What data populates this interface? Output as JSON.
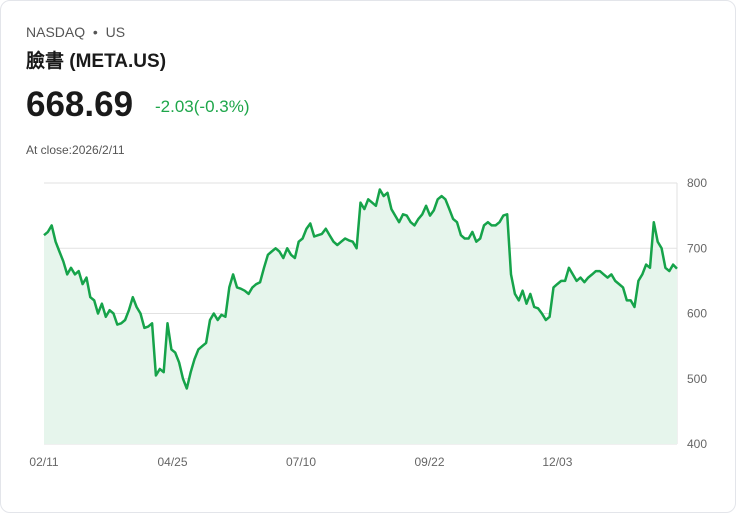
{
  "header": {
    "exchange": "NASDAQ",
    "separator": "•",
    "market": "US",
    "title": "臉書 (META.US)",
    "price": "668.69",
    "change": "-2.03(-0.3%)",
    "close_label": "At close:2026/2/11"
  },
  "colors": {
    "line": "#16a34a",
    "fill": "#e6f5ec",
    "grid": "#e2e2e2"
  },
  "chart_data": {
    "type": "area",
    "title": "臉書 (META.US)",
    "ylim": [
      400,
      800
    ],
    "y_ticks": [
      "800",
      "700",
      "600",
      "500",
      "400"
    ],
    "x_ticks": [
      "02/11",
      "04/25",
      "07/10",
      "09/22",
      "12/03"
    ],
    "x_tick_positions": [
      0,
      0.203,
      0.406,
      0.609,
      0.811
    ],
    "grid": true,
    "values": [
      720,
      725,
      735,
      710,
      695,
      680,
      660,
      670,
      660,
      665,
      645,
      655,
      625,
      620,
      600,
      615,
      595,
      605,
      600,
      583,
      585,
      590,
      605,
      625,
      610,
      600,
      578,
      580,
      585,
      505,
      515,
      510,
      585,
      545,
      540,
      525,
      500,
      485,
      510,
      530,
      545,
      550,
      555,
      590,
      600,
      590,
      598,
      595,
      640,
      660,
      640,
      638,
      635,
      630,
      640,
      645,
      648,
      670,
      690,
      695,
      700,
      695,
      685,
      700,
      690,
      685,
      710,
      715,
      730,
      738,
      718,
      720,
      722,
      730,
      720,
      710,
      705,
      710,
      715,
      712,
      710,
      700,
      770,
      760,
      775,
      770,
      765,
      790,
      780,
      785,
      760,
      750,
      740,
      752,
      750,
      740,
      735,
      745,
      752,
      765,
      750,
      758,
      775,
      780,
      775,
      760,
      745,
      740,
      720,
      715,
      715,
      725,
      710,
      715,
      735,
      740,
      735,
      735,
      740,
      750,
      752,
      660,
      630,
      620,
      635,
      615,
      630,
      610,
      608,
      600,
      590,
      595,
      640,
      645,
      650,
      650,
      670,
      660,
      650,
      655,
      648,
      655,
      660,
      665,
      665,
      660,
      655,
      660,
      650,
      645,
      640,
      620,
      620,
      610,
      650,
      660,
      675,
      670,
      740,
      710,
      700,
      670,
      665,
      675,
      668.69
    ]
  }
}
